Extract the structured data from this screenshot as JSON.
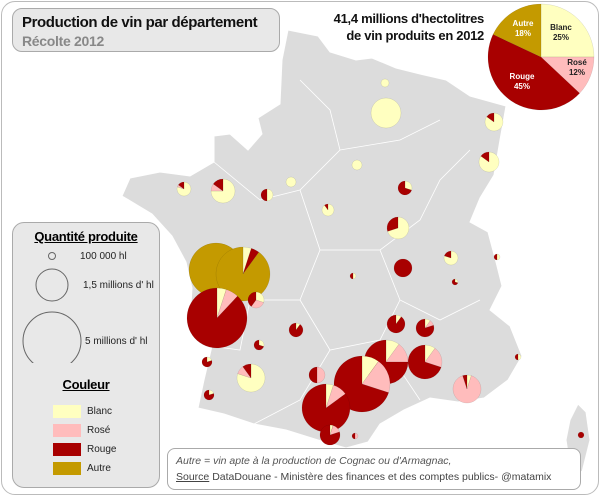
{
  "title": "Production de vin par département",
  "subtitle": "Récolte 2012",
  "total_line1": "41,4 millions d'hectolitres",
  "total_line2": "de vin produits en 2012",
  "colors": {
    "blanc": "#ffffc0",
    "rose": "#ffbcbc",
    "rouge": "#a80000",
    "autre": "#c49a00",
    "map": "#dcdcdc",
    "border": "#ffffff"
  },
  "chart_data": {
    "type": "pie",
    "categories": [
      "Blanc",
      "Rosé",
      "Rouge",
      "Autre"
    ],
    "values": [
      25,
      12,
      45,
      18
    ],
    "labels": [
      "25%",
      "12%",
      "45%",
      "18%"
    ]
  },
  "legend": {
    "size_title": "Quantité produite",
    "sizes": [
      {
        "label": "100 000 hl",
        "volume_mhl": 0.1
      },
      {
        "label": "1,5 millions d' hl",
        "volume_mhl": 1.5
      },
      {
        "label": "5 millions d' hl",
        "volume_mhl": 5
      }
    ],
    "color_title": "Couleur",
    "colors": [
      "Blanc",
      "Rosé",
      "Rouge",
      "Autre"
    ]
  },
  "departments": [
    {
      "volume_mhl": 0.09,
      "shares": [
        1,
        0,
        0,
        0
      ]
    },
    {
      "volume_mhl": 1.25,
      "shares": [
        1,
        0,
        0,
        0
      ]
    },
    {
      "volume_mhl": 0.45,
      "shares": [
        0.85,
        0,
        0.15,
        0
      ]
    },
    {
      "volume_mhl": 0.56,
      "shares": [
        0.85,
        0,
        0.15,
        0
      ]
    },
    {
      "volume_mhl": 0.27,
      "shares": [
        0.8,
        0.05,
        0.15,
        0
      ]
    },
    {
      "volume_mhl": 0.8,
      "shares": [
        0.75,
        0.1,
        0.15,
        0
      ]
    },
    {
      "volume_mhl": 0.2,
      "shares": [
        0.5,
        0,
        0.5,
        0
      ]
    },
    {
      "volume_mhl": 0.14,
      "shares": [
        1,
        0,
        0,
        0
      ]
    },
    {
      "volume_mhl": 0.14,
      "shares": [
        1,
        0,
        0,
        0
      ]
    },
    {
      "volume_mhl": 0.27,
      "shares": [
        0.3,
        0,
        0.7,
        0
      ]
    },
    {
      "volume_mhl": 0.2,
      "shares": [
        0.9,
        0,
        0.1,
        0
      ]
    },
    {
      "volume_mhl": 0.67,
      "shares": [
        0.7,
        0,
        0.3,
        0
      ]
    },
    {
      "volume_mhl": 0.05,
      "shares": [
        0.5,
        0,
        0.5,
        0
      ]
    },
    {
      "volume_mhl": 0.45,
      "shares": [
        0,
        0,
        1,
        0
      ]
    },
    {
      "volume_mhl": 0.27,
      "shares": [
        0.8,
        0,
        0.2,
        0
      ]
    },
    {
      "volume_mhl": 0.05,
      "shares": [
        0.3,
        0,
        0.7,
        0
      ]
    },
    {
      "volume_mhl": 4.05,
      "shares": [
        0,
        0,
        0,
        1
      ]
    },
    {
      "volume_mhl": 4.05,
      "shares": [
        0.05,
        0,
        0.05,
        0.9
      ]
    },
    {
      "volume_mhl": 5.0,
      "shares": [
        0.05,
        0.07,
        0.88,
        0
      ]
    },
    {
      "volume_mhl": 0.36,
      "shares": [
        0.3,
        0.3,
        0.4,
        0
      ]
    },
    {
      "volume_mhl": 0.27,
      "shares": [
        0.1,
        0,
        0.9,
        0
      ]
    },
    {
      "volume_mhl": 0.14,
      "shares": [
        0.3,
        0,
        0.7,
        0
      ]
    },
    {
      "volume_mhl": 0.14,
      "shares": [
        0.2,
        0,
        0.8,
        0
      ]
    },
    {
      "volume_mhl": 1.09,
      "shares": [
        0.8,
        0.1,
        0.1,
        0
      ]
    },
    {
      "volume_mhl": 0.14,
      "shares": [
        0.2,
        0,
        0.8,
        0
      ]
    },
    {
      "volume_mhl": 0.36,
      "shares": [
        0,
        0.5,
        0.5,
        0
      ]
    },
    {
      "volume_mhl": 0.45,
      "shares": [
        0.1,
        0,
        0.9,
        0
      ]
    },
    {
      "volume_mhl": 0.45,
      "shares": [
        0.1,
        0.1,
        0.8,
        0
      ]
    },
    {
      "volume_mhl": 2.69,
      "shares": [
        0.1,
        0.15,
        0.75,
        0
      ]
    },
    {
      "volume_mhl": 1.6,
      "shares": [
        0.1,
        0.2,
        0.7,
        0
      ]
    },
    {
      "volume_mhl": 4.36,
      "shares": [
        0.1,
        0.2,
        0.7,
        0
      ]
    },
    {
      "volume_mhl": 3.2,
      "shares": [
        0.05,
        0.1,
        0.85,
        0
      ]
    },
    {
      "volume_mhl": 1.09,
      "shares": [
        0.05,
        0.9,
        0.05,
        0
      ]
    },
    {
      "volume_mhl": 0.56,
      "shares": [
        0.05,
        0.15,
        0.8,
        0
      ]
    },
    {
      "volume_mhl": 0.05,
      "shares": [
        0,
        0.5,
        0.5,
        0
      ]
    },
    {
      "volume_mhl": 0.05,
      "shares": [
        0.5,
        0,
        0.5,
        0
      ]
    },
    {
      "volume_mhl": 0.05,
      "shares": [
        0,
        0,
        1,
        0
      ]
    },
    {
      "volume_mhl": 0.05,
      "shares": [
        0.5,
        0,
        0.5,
        0
      ]
    }
  ],
  "footer": {
    "note": "Autre = vin apte à la production de Cognac ou d'Armagnac,",
    "source_label": "Source",
    "source_text": " DataDouane - Ministère des finances et des comptes publics- @matamix"
  }
}
